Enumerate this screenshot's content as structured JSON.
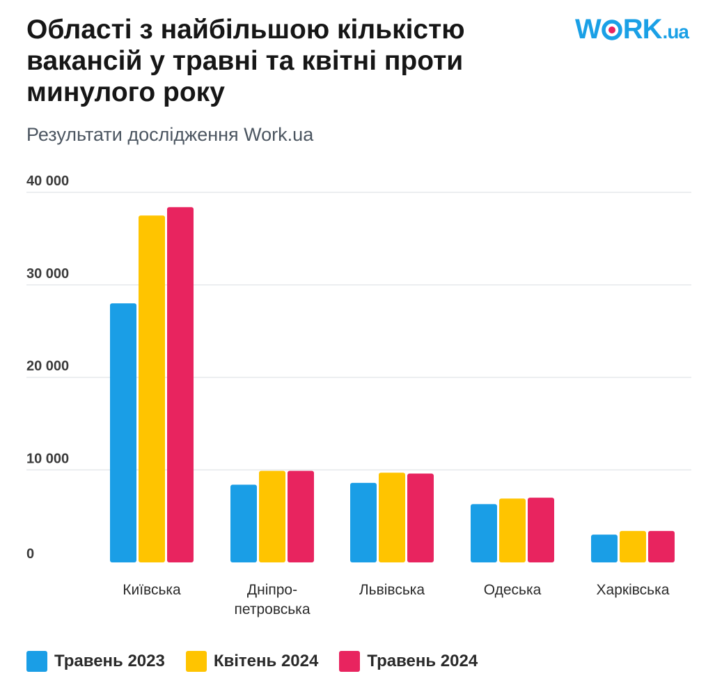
{
  "header": {
    "title": "Області з найбільшою кількістю вакансій у травні та квітні проти минулого року",
    "subtitle": "Результати дослідження Work.ua"
  },
  "logo": {
    "part1": "W",
    "part2": "RK",
    "suffix": ".ua",
    "color": "#1aa0e6",
    "dot_color": "#e8245f"
  },
  "chart_data": {
    "type": "bar",
    "categories": [
      "Київська",
      "Дніпро-\nпетровська",
      "Львівська",
      "Одеська",
      "Харківська"
    ],
    "series": [
      {
        "name": "Травень 2023",
        "values": [
          28000,
          8400,
          8600,
          6300,
          3000
        ],
        "color": "#1a9ee6"
      },
      {
        "name": "Квітень 2024",
        "values": [
          37500,
          9900,
          9700,
          6900,
          3400
        ],
        "color": "#ffc400"
      },
      {
        "name": "Травень 2024",
        "values": [
          38400,
          9900,
          9600,
          7000,
          3400
        ],
        "color": "#e8245f"
      }
    ],
    "ylim": [
      0,
      40000
    ],
    "yticks": [
      0,
      10000,
      20000,
      30000,
      40000
    ],
    "ytick_labels": [
      "0",
      "10 000",
      "20 000",
      "30 000",
      "40 000"
    ],
    "grid": true,
    "legend_position": "bottom-left"
  }
}
